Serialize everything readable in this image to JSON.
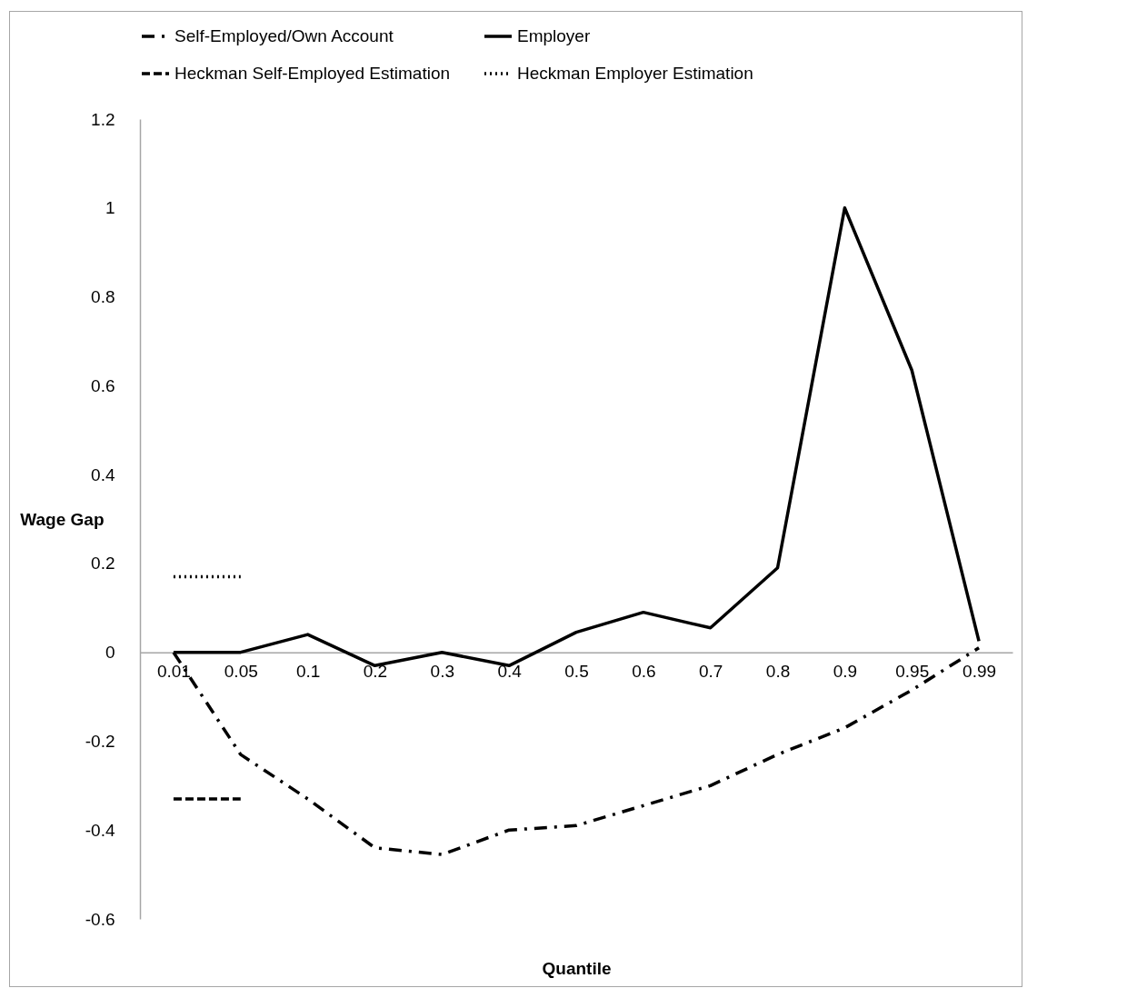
{
  "chart_data": {
    "type": "line",
    "xlabel": "Quantile",
    "ylabel": "Wage Gap",
    "categories": [
      "0.01",
      "0.05",
      "0.1",
      "0.2",
      "0.3",
      "0.4",
      "0.5",
      "0.6",
      "0.7",
      "0.8",
      "0.9",
      "0.95",
      "0.99"
    ],
    "series": [
      {
        "name": "Self-Employed/Own Account",
        "color": "#000000",
        "line_style": "dashdot",
        "values": [
          0,
          -0.23,
          -0.33,
          -0.44,
          -0.455,
          -0.4,
          -0.39,
          -0.345,
          -0.3,
          -0.23,
          -0.17,
          -0.085,
          0.01
        ]
      },
      {
        "name": "Employer",
        "color": "#000000",
        "line_style": "solid",
        "values": [
          0,
          0,
          0.04,
          -0.03,
          0,
          -0.03,
          0.045,
          0.09,
          0.055,
          0.19,
          1.0,
          0.635,
          0.025
        ]
      },
      {
        "name": "Heckman Self-Employed Estimation",
        "color": "#000000",
        "line_style": "dashed",
        "values": [
          -0.33,
          -0.33,
          null,
          null,
          null,
          null,
          null,
          null,
          null,
          null,
          null,
          null,
          null
        ]
      },
      {
        "name": "Heckman Employer Estimation",
        "color": "#000000",
        "line_style": "dotted",
        "values": [
          0.17,
          0.17,
          null,
          null,
          null,
          null,
          null,
          null,
          null,
          null,
          null,
          null,
          null
        ]
      }
    ],
    "ylim": [
      -0.6,
      1.2
    ],
    "yticks": [
      -0.6,
      -0.4,
      -0.2,
      0,
      0.2,
      0.4,
      0.6,
      0.8,
      1,
      1.2
    ],
    "legend": "top"
  }
}
